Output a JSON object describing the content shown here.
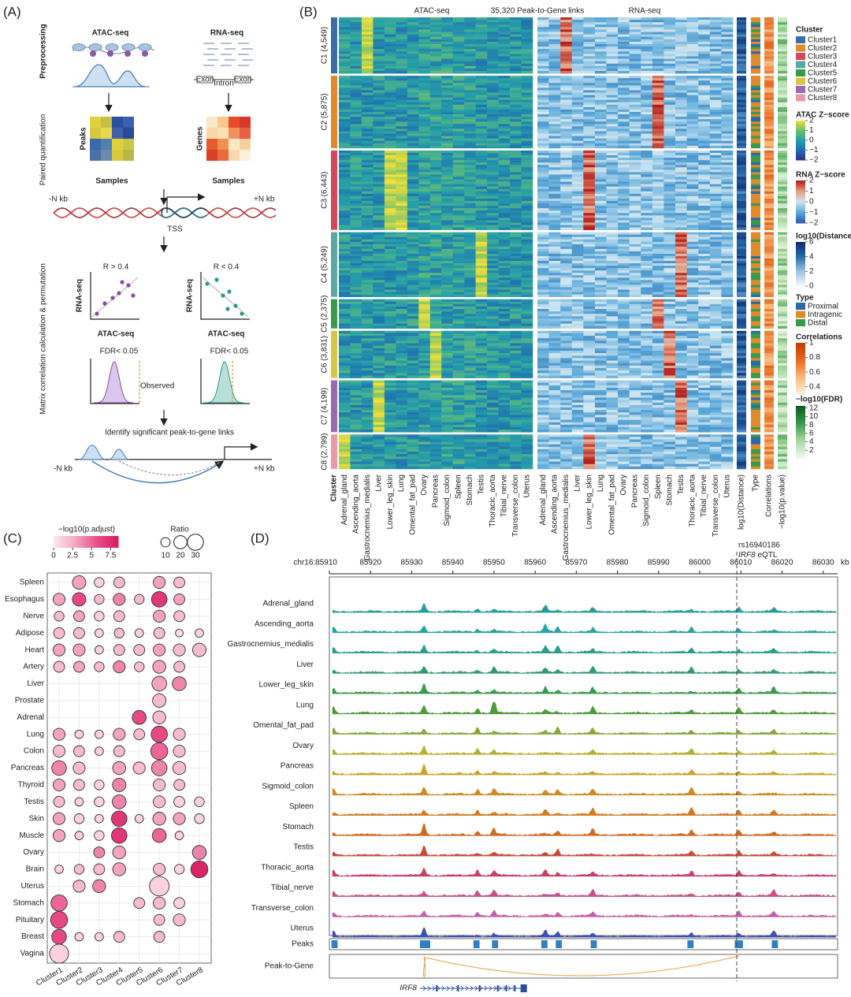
{
  "panels": {
    "a": "(A)",
    "b": "(B)",
    "c": "(C)",
    "d": "(D)"
  },
  "panel_a": {
    "row_preprocessing": "Preprocessing",
    "row_quant": "Paired quantification",
    "row_matrix": "Matrix correlation calculation & permutation",
    "atac": "ATAC-seq",
    "rna": "RNA-seq",
    "exon": "Exon",
    "intron": "Intron",
    "peaks": "Peaks",
    "genes": "Genes",
    "samples": "Samples",
    "minus_kb": "-N kb",
    "plus_kb": "+N kb",
    "tss": "TSS",
    "r_high": "R > 0.4",
    "r_low": "R < 0.4",
    "y_label": "RNA-seq",
    "x_label": "ATAC-seq",
    "fdr": "FDR< 0.05",
    "observed": "Observed",
    "identify": "Identify significant peak-to-gene links"
  },
  "panel_b": {
    "title_atac": "ATAC-seq",
    "title_links": "35,320 Peak-to-Gene links",
    "title_rna": "RNA-seq",
    "column_cluster": "Cluster",
    "clusters": [
      {
        "name": "Cluster1",
        "label": "C1 (4,549)",
        "count": 4549,
        "color": "#3b6ea5"
      },
      {
        "name": "Cluster2",
        "label": "C2 (5,875)",
        "count": 5875,
        "color": "#e08a2e"
      },
      {
        "name": "Cluster3",
        "label": "C3 (6,443)",
        "count": 6443,
        "color": "#d1495b"
      },
      {
        "name": "Cluster4",
        "label": "C4 (5,249)",
        "count": 5249,
        "color": "#5aa8a0"
      },
      {
        "name": "Cluster5",
        "label": "C5 (2,375)",
        "count": 2375,
        "color": "#3a9a4a"
      },
      {
        "name": "Cluster6",
        "label": "C6 (3,831)",
        "count": 3831,
        "color": "#d8c64a"
      },
      {
        "name": "Cluster7",
        "label": "C7 (4,199)",
        "count": 4199,
        "color": "#9a6ab0"
      },
      {
        "name": "Cluster8",
        "label": "C8 (2,799)",
        "count": 2799,
        "color": "#e89aa8"
      }
    ],
    "tissues": [
      "Adrenal_gland",
      "Ascending_aorta",
      "Gastrocnemius_medialis",
      "Liver",
      "Lower_leg_skin",
      "Lung",
      "Omental_fat_pad",
      "Ovary",
      "Pancreas",
      "Sigmoid_colon",
      "Spleen",
      "Stomach",
      "Testis",
      "Thoracic_aorta",
      "Tibial_nerve",
      "Transverse_colon",
      "Uterus"
    ],
    "annotation_columns": [
      "log10(Distance)",
      "Type",
      "Correlations",
      "−log10(p.value)"
    ],
    "legend_cluster_title": "Cluster",
    "atac_legend": {
      "title": "ATAC Z−score",
      "range": [
        -2,
        2
      ],
      "ticks": [
        2,
        1,
        0,
        {
          "value": -1,
          "label": "−1"
        },
        {
          "value": -2,
          "label": "−2"
        }
      ],
      "colors": [
        "#2b2f7f",
        "#1f6fb0",
        "#26a0a8",
        "#6cc070",
        "#f2e03a"
      ]
    },
    "rna_legend": {
      "title": "RNA Z−score",
      "range": [
        -2,
        2
      ],
      "ticks": [
        2,
        1,
        0,
        {
          "value": -1,
          "label": "−1"
        },
        {
          "value": -2,
          "label": "−2"
        }
      ],
      "colors": [
        "#2b5fa8",
        "#5aa8d8",
        "#cde6f2",
        "#e89a7a",
        "#b01818"
      ]
    },
    "distance_legend": {
      "title": "log10(Distance)",
      "range": [
        0,
        6
      ],
      "ticks": [
        6,
        4,
        2,
        0
      ],
      "colors": [
        "#f5f8fc",
        "#9cc3e0",
        "#2a6aa8",
        "#0a2a6a"
      ]
    },
    "type_legend": {
      "title": "Type",
      "entries": [
        {
          "name": "Proximal",
          "color": "#2a6aa8"
        },
        {
          "name": "Intragenic",
          "color": "#e08a2e"
        },
        {
          "name": "Distal",
          "color": "#3a9a4a"
        }
      ]
    },
    "corr_legend": {
      "title": "Correlations",
      "range": [
        0.3,
        1
      ],
      "ticks": [
        1,
        0.8,
        0.6,
        0.4
      ],
      "colors": [
        "#fdf0e0",
        "#f8b878",
        "#e86a20",
        "#c03a08"
      ]
    },
    "fdr_legend": {
      "title": "−log10(FDR)",
      "range": [
        0,
        12.5
      ],
      "ticks": [
        12,
        10,
        8,
        6,
        4,
        2
      ],
      "colors": [
        "#f5faf2",
        "#a8d8a0",
        "#3a9a48",
        "#0a5a20"
      ]
    }
  },
  "panel_c": {
    "tissues": [
      "Spleen",
      "Esophagus",
      "Nerve",
      "Adipose",
      "Heart",
      "Artery",
      "Liver",
      "Prostate",
      "Adrenal",
      "Lung",
      "Colon",
      "Pancreas",
      "Thyroid",
      "Testis",
      "Skin",
      "Muscle",
      "Ovary",
      "Brain",
      "Uterus",
      "Stomach",
      "Pituitary",
      "Breast",
      "Vagina"
    ],
    "clusters": [
      "Cluster1",
      "Cluster2",
      "Cluster3",
      "Cluster4",
      "Cluster5",
      "Cluster6",
      "Cluster7",
      "Cluster8"
    ],
    "ratio": [
      [
        null,
        15,
        8,
        10,
        null,
        12,
        10,
        null
      ],
      [
        12,
        15,
        8,
        12,
        8,
        20,
        10,
        null
      ],
      [
        8,
        10,
        8,
        10,
        null,
        12,
        10,
        null
      ],
      [
        10,
        10,
        6,
        8,
        6,
        10,
        5,
        6
      ],
      [
        12,
        12,
        6,
        10,
        10,
        12,
        12,
        15
      ],
      [
        10,
        10,
        8,
        12,
        8,
        14,
        10,
        null
      ],
      [
        null,
        null,
        null,
        null,
        null,
        18,
        16,
        null
      ],
      [
        null,
        null,
        null,
        null,
        null,
        15,
        null,
        null
      ],
      [
        null,
        null,
        null,
        null,
        16,
        14,
        null,
        null
      ],
      [
        12,
        6,
        6,
        12,
        10,
        22,
        12,
        null
      ],
      [
        12,
        10,
        6,
        10,
        null,
        24,
        12,
        null
      ],
      [
        18,
        12,
        null,
        14,
        12,
        20,
        14,
        null
      ],
      [
        12,
        10,
        8,
        15,
        null,
        12,
        10,
        null
      ],
      [
        10,
        6,
        8,
        16,
        null,
        12,
        10,
        8
      ],
      [
        12,
        8,
        6,
        20,
        6,
        14,
        12,
        8
      ],
      [
        12,
        6,
        8,
        20,
        null,
        16,
        6,
        null
      ],
      [
        null,
        null,
        10,
        14,
        null,
        null,
        null,
        16
      ],
      [
        6,
        8,
        10,
        14,
        null,
        12,
        8,
        24
      ],
      [
        null,
        12,
        14,
        null,
        null,
        32,
        null,
        null
      ],
      [
        22,
        null,
        null,
        null,
        10,
        12,
        10,
        null
      ],
      [
        24,
        null,
        null,
        null,
        null,
        10,
        12,
        null
      ],
      [
        18,
        6,
        6,
        10,
        null,
        10,
        null,
        null
      ],
      [
        30,
        null,
        null,
        null,
        null,
        null,
        null,
        null
      ]
    ],
    "padj": [
      [
        null,
        3,
        1,
        2,
        null,
        3,
        2,
        null
      ],
      [
        3,
        6,
        2,
        4,
        2,
        7,
        3,
        null
      ],
      [
        2,
        3,
        1,
        2,
        null,
        3,
        2,
        null
      ],
      [
        2,
        2,
        1,
        2,
        1,
        2,
        0.5,
        1
      ],
      [
        3,
        3,
        1,
        2,
        2,
        3,
        2,
        2
      ],
      [
        2,
        3,
        2,
        4,
        2,
        3,
        2,
        null
      ],
      [
        null,
        null,
        null,
        null,
        null,
        3,
        4,
        null
      ],
      [
        null,
        null,
        null,
        null,
        null,
        2,
        null,
        null
      ],
      [
        null,
        null,
        null,
        null,
        6,
        2,
        null,
        null
      ],
      [
        3,
        1,
        1,
        3,
        2,
        6,
        2,
        null
      ],
      [
        2,
        2,
        1,
        2,
        null,
        5,
        2,
        null
      ],
      [
        4,
        2,
        null,
        3,
        2,
        4,
        2,
        null
      ],
      [
        3,
        2,
        1,
        4,
        null,
        2,
        2,
        null
      ],
      [
        2,
        1,
        1,
        4,
        null,
        2,
        1,
        1
      ],
      [
        3,
        1,
        1,
        7,
        1,
        3,
        3,
        1
      ],
      [
        3,
        1,
        1,
        7,
        null,
        5,
        1,
        null
      ],
      [
        null,
        null,
        4,
        3,
        null,
        null,
        null,
        4
      ],
      [
        1,
        2,
        2,
        3,
        null,
        2,
        1,
        8
      ],
      [
        null,
        2,
        4,
        null,
        null,
        1,
        null,
        null
      ],
      [
        5,
        null,
        null,
        null,
        2,
        2,
        1,
        null
      ],
      [
        6,
        null,
        null,
        null,
        null,
        2,
        2,
        null
      ],
      [
        6,
        1,
        1,
        2,
        null,
        2,
        null,
        null
      ],
      [
        1,
        null,
        null,
        null,
        null,
        null,
        null,
        null
      ]
    ],
    "padj_legend": {
      "title": "−log10(p.adjust)",
      "range": [
        0,
        8.5
      ],
      "ticks": [
        0,
        2.5,
        5,
        7.5
      ],
      "colors": [
        "#fde8ee",
        "#f4a8c0",
        "#e8508a",
        "#d81b60"
      ]
    },
    "ratio_legend": {
      "title": "Ratio",
      "ticks": [
        10,
        20,
        30
      ]
    }
  },
  "panel_d": {
    "xlim": [
      85910,
      86033.5
    ],
    "xticks": [
      {
        "value": 85910,
        "label": "chr16:85910"
      },
      85920,
      85930,
      85940,
      85950,
      85960,
      85970,
      85980,
      85990,
      86000,
      86010,
      86020,
      86030
    ],
    "unit": "kb",
    "snp": {
      "position": 86009,
      "name": "rs16940186",
      "gene": "IRF8",
      "label": "eQTL"
    },
    "tracks": [
      {
        "name": "Adrenal_gland",
        "color": "#2a9d9b"
      },
      {
        "name": "Ascending_aorta",
        "color": "#2aa3a3"
      },
      {
        "name": "Gastrocnemius_medialis",
        "color": "#2c9c8e"
      },
      {
        "name": "Liver",
        "color": "#2e9a6e"
      },
      {
        "name": "Lower_leg_skin",
        "color": "#3a9a50"
      },
      {
        "name": "Lung",
        "color": "#4f9a3a"
      },
      {
        "name": "Omental_fat_pad",
        "color": "#8aa83a"
      },
      {
        "name": "Ovary",
        "color": "#b5b030"
      },
      {
        "name": "Pancreas",
        "color": "#c9a42a"
      },
      {
        "name": "Sigmoid_colon",
        "color": "#d08a25"
      },
      {
        "name": "Spleen",
        "color": "#d27a20"
      },
      {
        "name": "Stomach",
        "color": "#d06a20"
      },
      {
        "name": "Testis",
        "color": "#c84a3a"
      },
      {
        "name": "Thoracic_aorta",
        "color": "#c84060"
      },
      {
        "name": "Tibial_nerve",
        "color": "#c8508a"
      },
      {
        "name": "Transverse_colon",
        "color": "#c060a8"
      },
      {
        "name": "Uterus",
        "color": "#4050b0"
      }
    ],
    "peaks_label": "Peaks",
    "peaks": [
      [
        85910.5,
        85912
      ],
      [
        85932,
        85934.5
      ],
      [
        85945,
        85946.5
      ],
      [
        85949.5,
        85951
      ],
      [
        85961.5,
        85963
      ],
      [
        85965,
        85966.5
      ],
      [
        85973.5,
        85975
      ],
      [
        85997,
        85998.5
      ],
      [
        86008.5,
        86010.5
      ],
      [
        86017.5,
        86019
      ]
    ],
    "links_label": "Peak-to-Gene",
    "links": [
      [
        85933,
        86009.5
      ]
    ],
    "gene": {
      "name": "IRF8",
      "span": [
        85932,
        85958
      ]
    }
  }
}
